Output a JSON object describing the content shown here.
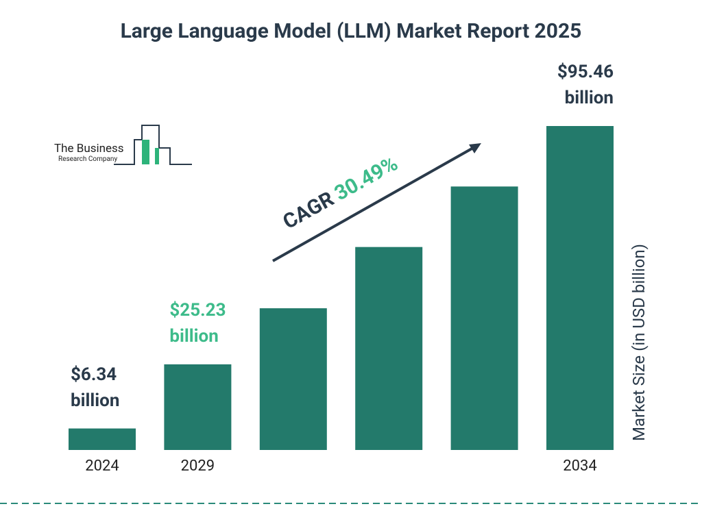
{
  "chart_data": {
    "type": "bar",
    "title": "Large Language Model (LLM) Market Report 2025",
    "y_axis_label": "Market Size (in USD billion)",
    "categories": [
      "2024",
      "2029",
      null,
      null,
      null,
      "2034"
    ],
    "values": [
      6.34,
      25.23,
      41.76,
      59.81,
      77.64,
      95.46
    ],
    "value_labels": [
      "$6.34 billion",
      "$25.23 billion",
      null,
      null,
      null,
      "$95.46 billion"
    ],
    "value_label_colors": [
      "#2a3a4a",
      "#3dbb8a",
      null,
      null,
      null,
      "#2a3a4a"
    ],
    "color": "#237a6b",
    "annotation": {
      "label": "CAGR",
      "value": "30.49%",
      "label_color": "#2a3a4a",
      "value_color": "#3dbb8a"
    },
    "logo": {
      "line1": "The Business",
      "line2": "Research Company"
    }
  }
}
